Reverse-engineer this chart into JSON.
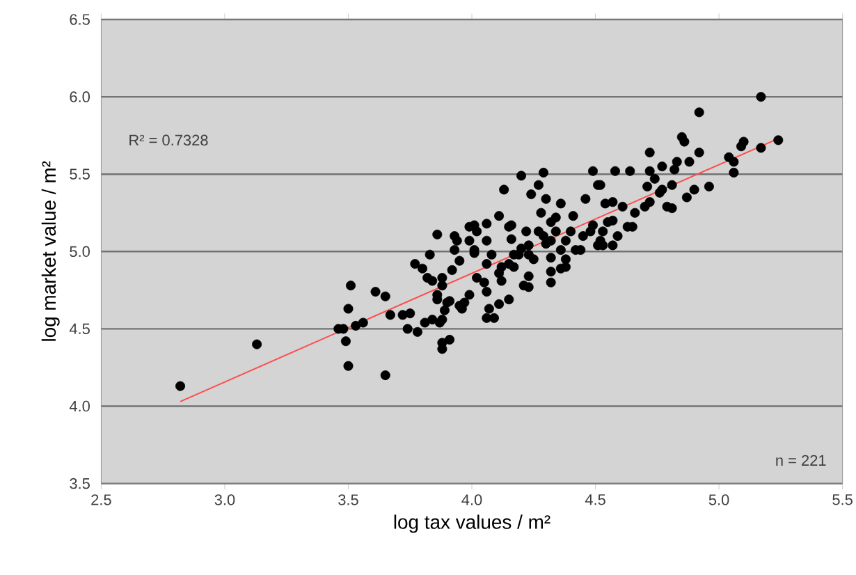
{
  "chart_data": {
    "type": "scatter",
    "xlabel": "log tax values / m²",
    "ylabel": "log  market  value / m²",
    "annotations": [
      "R² = 0.7328",
      "n = 221"
    ],
    "xlim": [
      2.5,
      5.5
    ],
    "ylim": [
      3.5,
      6.5
    ],
    "xticks": [
      2.5,
      {
        "value": 3,
        "label": "3.0"
      },
      3.5,
      {
        "value": 4,
        "label": "4.0"
      },
      4.5,
      {
        "value": 5,
        "label": "5.0"
      },
      5.5
    ],
    "yticks": [
      3.5,
      {
        "value": 4,
        "label": "4.0"
      },
      4.5,
      {
        "value": 5,
        "label": "5.0"
      },
      5.5,
      {
        "value": 6,
        "label": "6.0"
      },
      6.5
    ],
    "grid": "y",
    "series": [
      {
        "marker": "circle",
        "color": "#000000",
        "x": [
          2.82,
          3.13,
          3.5,
          3.65,
          3.51,
          3.5,
          3.49,
          3.46,
          3.48,
          3.53,
          3.56,
          3.61,
          3.65,
          3.67,
          3.72,
          3.74,
          3.78,
          3.75,
          3.81,
          3.84,
          3.88,
          3.88,
          3.91,
          3.88,
          3.89,
          3.91,
          3.96,
          3.86,
          3.88,
          3.82,
          3.77,
          3.8,
          3.83,
          3.92,
          3.95,
          3.99,
          3.86,
          3.84,
          3.88,
          3.86,
          3.9,
          3.94,
          3.93,
          3.99,
          4.01,
          4.02,
          4.01,
          4.06,
          4.11,
          4.13,
          4.16,
          4.16,
          4.08,
          4.06,
          4.05,
          4.06,
          4.07,
          4.11,
          4.09,
          3.95,
          3.97,
          4.11,
          4.12,
          4.15,
          4.15,
          4.17,
          4.2,
          4.23,
          4.23,
          4.21,
          4.27,
          4.24,
          4.3,
          4.28,
          4.32,
          4.32,
          4.32,
          4.36,
          4.41,
          4.46,
          4.52,
          4.49,
          4.53,
          4.38,
          4.36,
          4.42,
          4.45,
          4.29,
          4.32,
          4.92,
          4.85,
          4.86,
          4.92,
          4.72,
          4.83,
          4.88,
          4.82,
          4.77,
          4.72,
          4.64,
          4.58,
          4.49,
          4.74,
          4.71,
          4.77,
          4.81,
          4.9,
          4.96,
          4.87,
          4.79,
          4.81,
          4.72,
          4.66,
          4.61,
          4.57,
          4.51,
          4.55,
          4.63,
          4.57,
          4.51,
          5.04,
          5.06,
          5.06,
          5.09,
          5.1,
          5.17,
          5.24,
          5.17,
          4.2,
          4.29,
          4.06,
          4.23,
          4.38,
          3.87,
          4.34,
          4.54,
          4.57,
          4.65,
          4.7,
          4.76,
          4.27,
          4.34,
          4.4,
          4.3,
          4.38,
          4.48,
          4.53,
          4.23,
          4.19,
          4.25,
          4.32,
          4.36,
          4.44,
          4.52,
          4.59,
          4.12,
          4.17,
          4.22,
          4.15,
          3.99,
          4.06,
          4.01,
          3.93,
          4.02
        ],
        "values": [
          4.13,
          4.4,
          4.26,
          4.2,
          4.78,
          4.63,
          4.42,
          4.5,
          4.5,
          4.52,
          4.54,
          4.74,
          4.71,
          4.59,
          4.59,
          4.5,
          4.48,
          4.6,
          4.54,
          4.56,
          4.41,
          4.37,
          4.43,
          4.56,
          4.62,
          4.68,
          4.63,
          4.72,
          4.78,
          4.83,
          4.92,
          4.89,
          4.98,
          4.88,
          4.94,
          4.72,
          5.11,
          4.81,
          4.83,
          4.69,
          4.67,
          5.07,
          5.1,
          5.16,
          5.17,
          5.13,
          5.01,
          5.18,
          5.23,
          5.4,
          5.17,
          5.08,
          4.98,
          4.92,
          4.8,
          4.74,
          4.63,
          4.66,
          4.57,
          4.65,
          4.67,
          4.86,
          4.81,
          4.69,
          4.92,
          4.98,
          5.02,
          4.98,
          4.84,
          4.78,
          5.43,
          5.37,
          5.34,
          5.25,
          4.87,
          4.8,
          5.19,
          5.31,
          5.23,
          5.34,
          5.43,
          5.17,
          5.04,
          4.95,
          4.89,
          5.01,
          5.1,
          5.1,
          5.07,
          5.9,
          5.74,
          5.71,
          5.64,
          5.64,
          5.58,
          5.58,
          5.53,
          5.55,
          5.52,
          5.52,
          5.52,
          5.52,
          5.47,
          5.42,
          5.4,
          5.43,
          5.4,
          5.42,
          5.35,
          5.29,
          5.28,
          5.32,
          5.25,
          5.29,
          5.32,
          5.43,
          5.19,
          5.16,
          5.04,
          5.04,
          5.61,
          5.58,
          5.51,
          5.68,
          5.71,
          6.0,
          5.72,
          5.67,
          5.49,
          5.51,
          4.57,
          4.77,
          4.9,
          4.54,
          5.22,
          5.31,
          5.2,
          5.16,
          5.29,
          5.38,
          5.13,
          5.13,
          5.13,
          5.05,
          5.07,
          5.13,
          5.13,
          5.04,
          4.98,
          4.95,
          4.96,
          5.01,
          5.01,
          5.07,
          5.1,
          4.9,
          4.9,
          5.13,
          5.16,
          5.07,
          5.07,
          4.99,
          5.01,
          4.83
        ]
      },
      {
        "type": "line",
        "color": "#ff4d4d",
        "marker": "none",
        "line_style": "solid",
        "x": [
          2.82,
          5.24
        ],
        "values": [
          4.03,
          5.73
        ]
      }
    ]
  }
}
